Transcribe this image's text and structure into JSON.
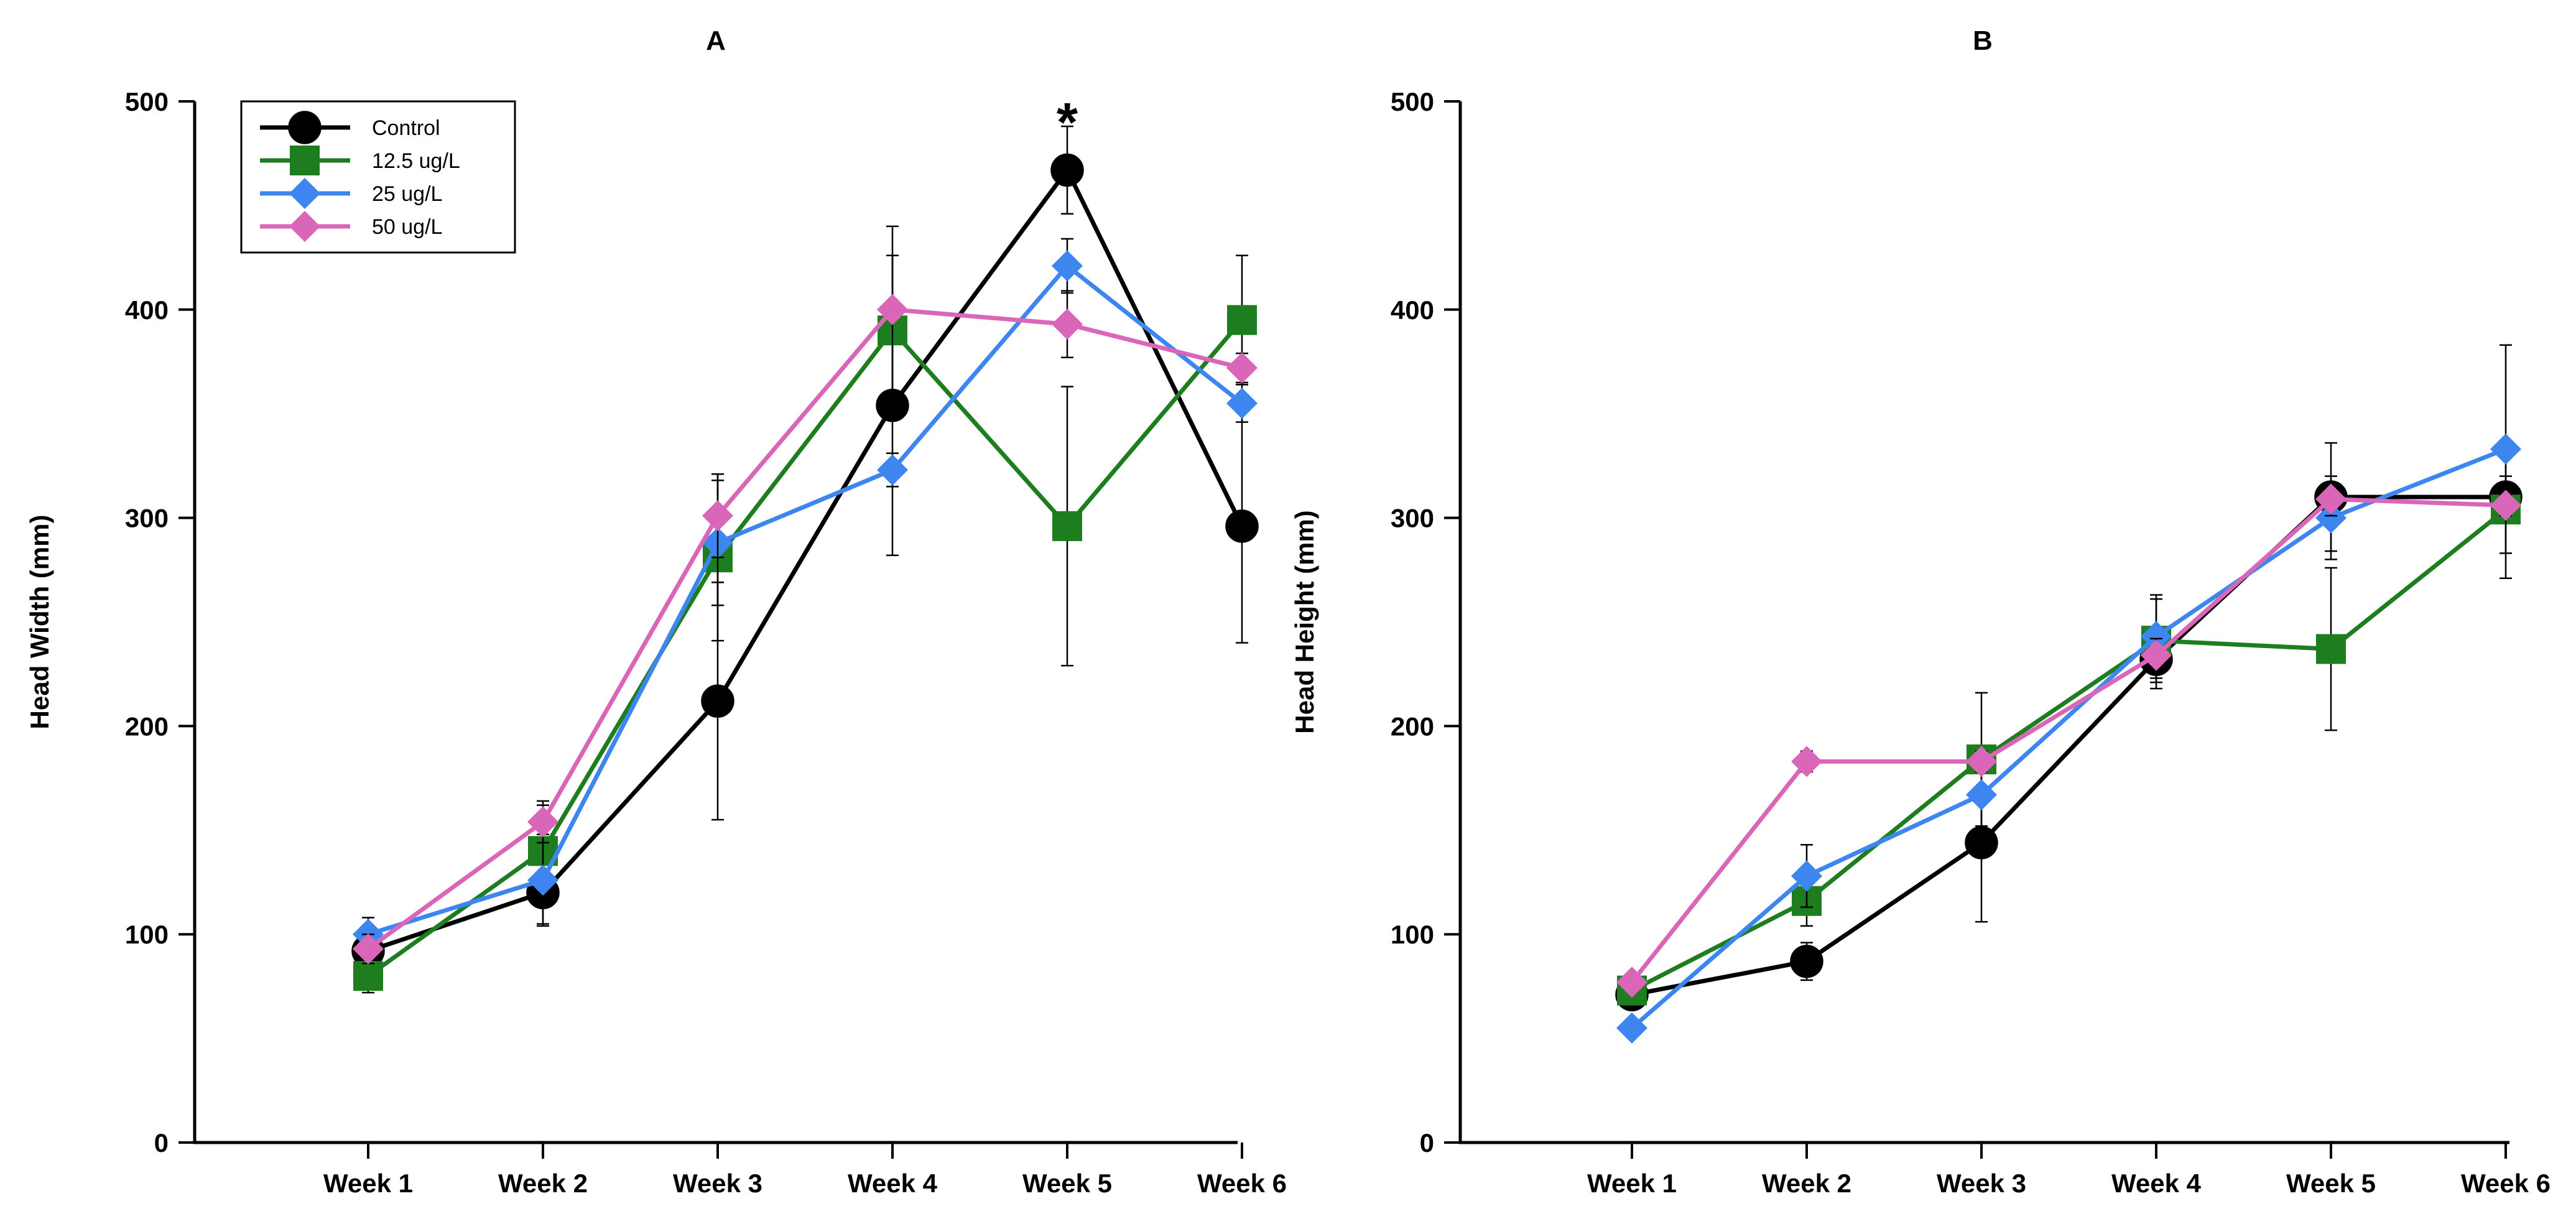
{
  "chart_data": [
    {
      "type": "line",
      "title": "A",
      "xlabel": "",
      "ylabel": "Head Width (mm)",
      "ylim": [
        0,
        500
      ],
      "yticks": [
        0,
        100,
        200,
        300,
        400,
        500
      ],
      "categories": [
        "Week 1",
        "Week 2",
        "Week 3",
        "Week 4",
        "Week 5",
        "Week 6"
      ],
      "grid": false,
      "legend_position": "top-left",
      "annotations": [
        {
          "text": "*",
          "category": "Week 5",
          "y": 490
        }
      ],
      "series": [
        {
          "name": "Control",
          "color": "#000000",
          "marker": "circle",
          "values": [
            92,
            120,
            212,
            354,
            467,
            296
          ],
          "errors": [
            12,
            15,
            57,
            72,
            21,
            56
          ]
        },
        {
          "name": "12.5 ug/L",
          "color": "#1e7d1e",
          "marker": "square",
          "values": [
            80,
            140,
            281,
            390,
            296,
            395
          ],
          "errors": [
            8,
            22,
            40,
            36,
            67,
            31
          ]
        },
        {
          "name": "25 ug/L",
          "color": "#3d86f0",
          "marker": "diamond",
          "values": [
            100,
            126,
            288,
            323,
            421,
            355
          ],
          "errors": [
            8,
            22,
            30,
            8,
            13,
            9
          ]
        },
        {
          "name": "50 ug/L",
          "color": "#d966b8",
          "marker": "diamond",
          "values": [
            93,
            154,
            301,
            400,
            393,
            372
          ],
          "errors": [
            7,
            10,
            20,
            40,
            16,
            7
          ]
        }
      ]
    },
    {
      "type": "line",
      "title": "B",
      "xlabel": "",
      "ylabel": "Head Height (mm)",
      "ylim": [
        0,
        500
      ],
      "yticks": [
        0,
        100,
        200,
        300,
        400,
        500
      ],
      "categories": [
        "Week 1",
        "Week 2",
        "Week 3",
        "Week 4",
        "Week 5",
        "Week 6"
      ],
      "grid": false,
      "legend_position": "none",
      "series": [
        {
          "name": "Control",
          "color": "#000000",
          "marker": "circle",
          "values": [
            71,
            87,
            144,
            232,
            310,
            310
          ],
          "errors": [
            4,
            9,
            38,
            14,
            26,
            10
          ]
        },
        {
          "name": "12.5 ug/L",
          "color": "#1e7d1e",
          "marker": "square",
          "values": [
            73,
            116,
            184,
            241,
            237,
            304
          ],
          "errors": [
            4,
            12,
            32,
            20,
            39,
            33
          ]
        },
        {
          "name": "25 ug/L",
          "color": "#3d86f0",
          "marker": "diamond",
          "values": [
            55,
            128,
            167,
            243,
            300,
            333
          ],
          "errors": [
            4,
            15,
            20,
            20,
            20,
            50
          ]
        },
        {
          "name": "50 ug/L",
          "color": "#d966b8",
          "marker": "diamond",
          "values": [
            77,
            183,
            183,
            234,
            309,
            306
          ],
          "errors": [
            3,
            5,
            5,
            8,
            8,
            5
          ]
        }
      ]
    }
  ]
}
